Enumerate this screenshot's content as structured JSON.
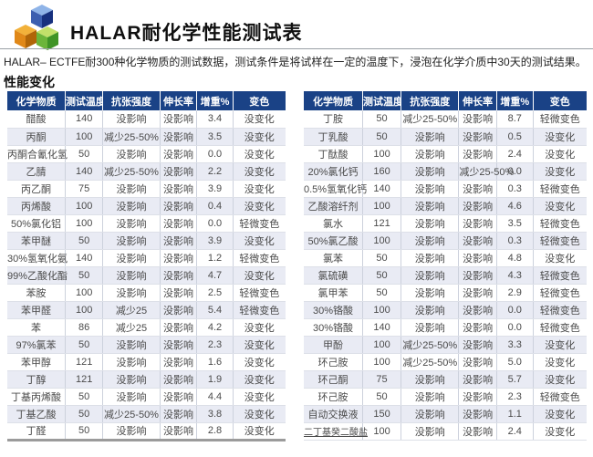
{
  "header": {
    "title": "HALAR耐化学性能测试表",
    "subtitle": "HALAR– ECTFE耐300种化学物质的测试数据，测试条件是将试样在一定的温度下，浸泡在化学介质中30天的测试结果。",
    "section_title": "性能变化",
    "logo_icon": "three-cubes-logo"
  },
  "columns": [
    "化学物质",
    "测试温度",
    "抗张强度",
    "伸长率",
    "增重%",
    "变色"
  ],
  "tables": {
    "left": {
      "rows": [
        [
          "醋酸",
          "140",
          "没影响",
          "没影响",
          "3.4",
          "没变化"
        ],
        [
          "丙酮",
          "100",
          "减少25-50%",
          "没影响",
          "3.5",
          "没变化"
        ],
        [
          "丙酮合氰化氢",
          "50",
          "没影响",
          "没影响",
          "0.0",
          "没变化"
        ],
        [
          "乙腈",
          "140",
          "减少25-50%",
          "没影响",
          "2.2",
          "没变化"
        ],
        [
          "丙乙酮",
          "75",
          "没影响",
          "没影响",
          "3.9",
          "没变化"
        ],
        [
          "丙烯酸",
          "100",
          "没影响",
          "没影响",
          "0.4",
          "没变化"
        ],
        [
          "50%氯化铝",
          "100",
          "没影响",
          "没影响",
          "0.0",
          "轻微变色"
        ],
        [
          "苯甲醚",
          "50",
          "没影响",
          "没影响",
          "3.9",
          "没变化"
        ],
        [
          "30%氢氧化氨",
          "140",
          "没影响",
          "没影响",
          "1.2",
          "轻微变色"
        ],
        [
          "99%乙酸化酯",
          "50",
          "没影响",
          "没影响",
          "4.7",
          "没变化"
        ],
        [
          "苯胺",
          "100",
          "没影响",
          "没影响",
          "2.5",
          "轻微变色"
        ],
        [
          "苯甲醛",
          "100",
          "减少25",
          "没影响",
          "5.4",
          "轻微变色"
        ],
        [
          "苯",
          "86",
          "减少25",
          "没影响",
          "4.2",
          "没变化"
        ],
        [
          "97%氯苯",
          "50",
          "没影响",
          "没影响",
          "2.3",
          "没变化"
        ],
        [
          "苯甲醇",
          "121",
          "没影响",
          "没影响",
          "1.6",
          "没变化"
        ],
        [
          "丁醇",
          "121",
          "没影响",
          "没影响",
          "1.9",
          "没变化"
        ],
        [
          "丁基丙烯酸",
          "50",
          "没影响",
          "没影响",
          "4.4",
          "没变化"
        ],
        [
          "丁基乙酸",
          "50",
          "减少25-50%",
          "没影响",
          "3.8",
          "没变化"
        ],
        [
          "丁醛",
          "50",
          "没影响",
          "没影响",
          "2.8",
          "没变化"
        ]
      ]
    },
    "right": {
      "rows": [
        [
          "丁胺",
          "50",
          "减少25-50%",
          "没影响",
          "8.7",
          "轻微变色"
        ],
        [
          "丁乳酸",
          "50",
          "没影响",
          "没影响",
          "0.5",
          "没变化"
        ],
        [
          "丁酞酸",
          "100",
          "没影响",
          "没影响",
          "2.4",
          "没变化"
        ],
        [
          "20%氯化钙",
          "160",
          "没影响",
          "减少25-50%",
          "0.0",
          "没变化"
        ],
        [
          "0.5%氢氧化钙",
          "140",
          "没影响",
          "没影响",
          "0.3",
          "轻微变色"
        ],
        [
          "乙酸溶纤剂",
          "100",
          "没影响",
          "没影响",
          "4.6",
          "没变化"
        ],
        [
          "氯水",
          "121",
          "没影响",
          "没影响",
          "3.5",
          "轻微变色"
        ],
        [
          "50%氯乙酸",
          "100",
          "没影响",
          "没影响",
          "0.3",
          "轻微变色"
        ],
        [
          "氯苯",
          "50",
          "没影响",
          "没影响",
          "4.8",
          "没变化"
        ],
        [
          "氯硫磺",
          "50",
          "没影响",
          "没影响",
          "4.3",
          "轻微变色"
        ],
        [
          "氯甲苯",
          "50",
          "没影响",
          "没影响",
          "2.9",
          "轻微变色"
        ],
        [
          "30%铬酸",
          "100",
          "没影响",
          "没影响",
          "0.0",
          "轻微变色"
        ],
        [
          "30%铬酸",
          "140",
          "没影响",
          "没影响",
          "0.0",
          "轻微变色"
        ],
        [
          "甲酚",
          "100",
          "减少25-50%",
          "没影响",
          "3.3",
          "没变化"
        ],
        [
          "环己胺",
          "100",
          "减少25-50%",
          "没影响",
          "5.0",
          "没变化"
        ],
        [
          "环己酮",
          "75",
          "没影响",
          "没影响",
          "5.7",
          "没变化"
        ],
        [
          "环己胺",
          "50",
          "没影响",
          "没影响",
          "2.3",
          "轻微变色"
        ],
        [
          "自动交换液",
          "150",
          "没影响",
          "没影响",
          "1.1",
          "没变化"
        ],
        [
          "二丁基癸二酸盐",
          "100",
          "没影响",
          "没影响",
          "2.4",
          "没变化"
        ]
      ]
    }
  },
  "colors": {
    "header_bg": "#1a4286",
    "row_alt_bg": "#e9ebf4",
    "cube_blue": "#2b4fa8",
    "cube_orange": "#e08818",
    "cube_green": "#58b830"
  }
}
